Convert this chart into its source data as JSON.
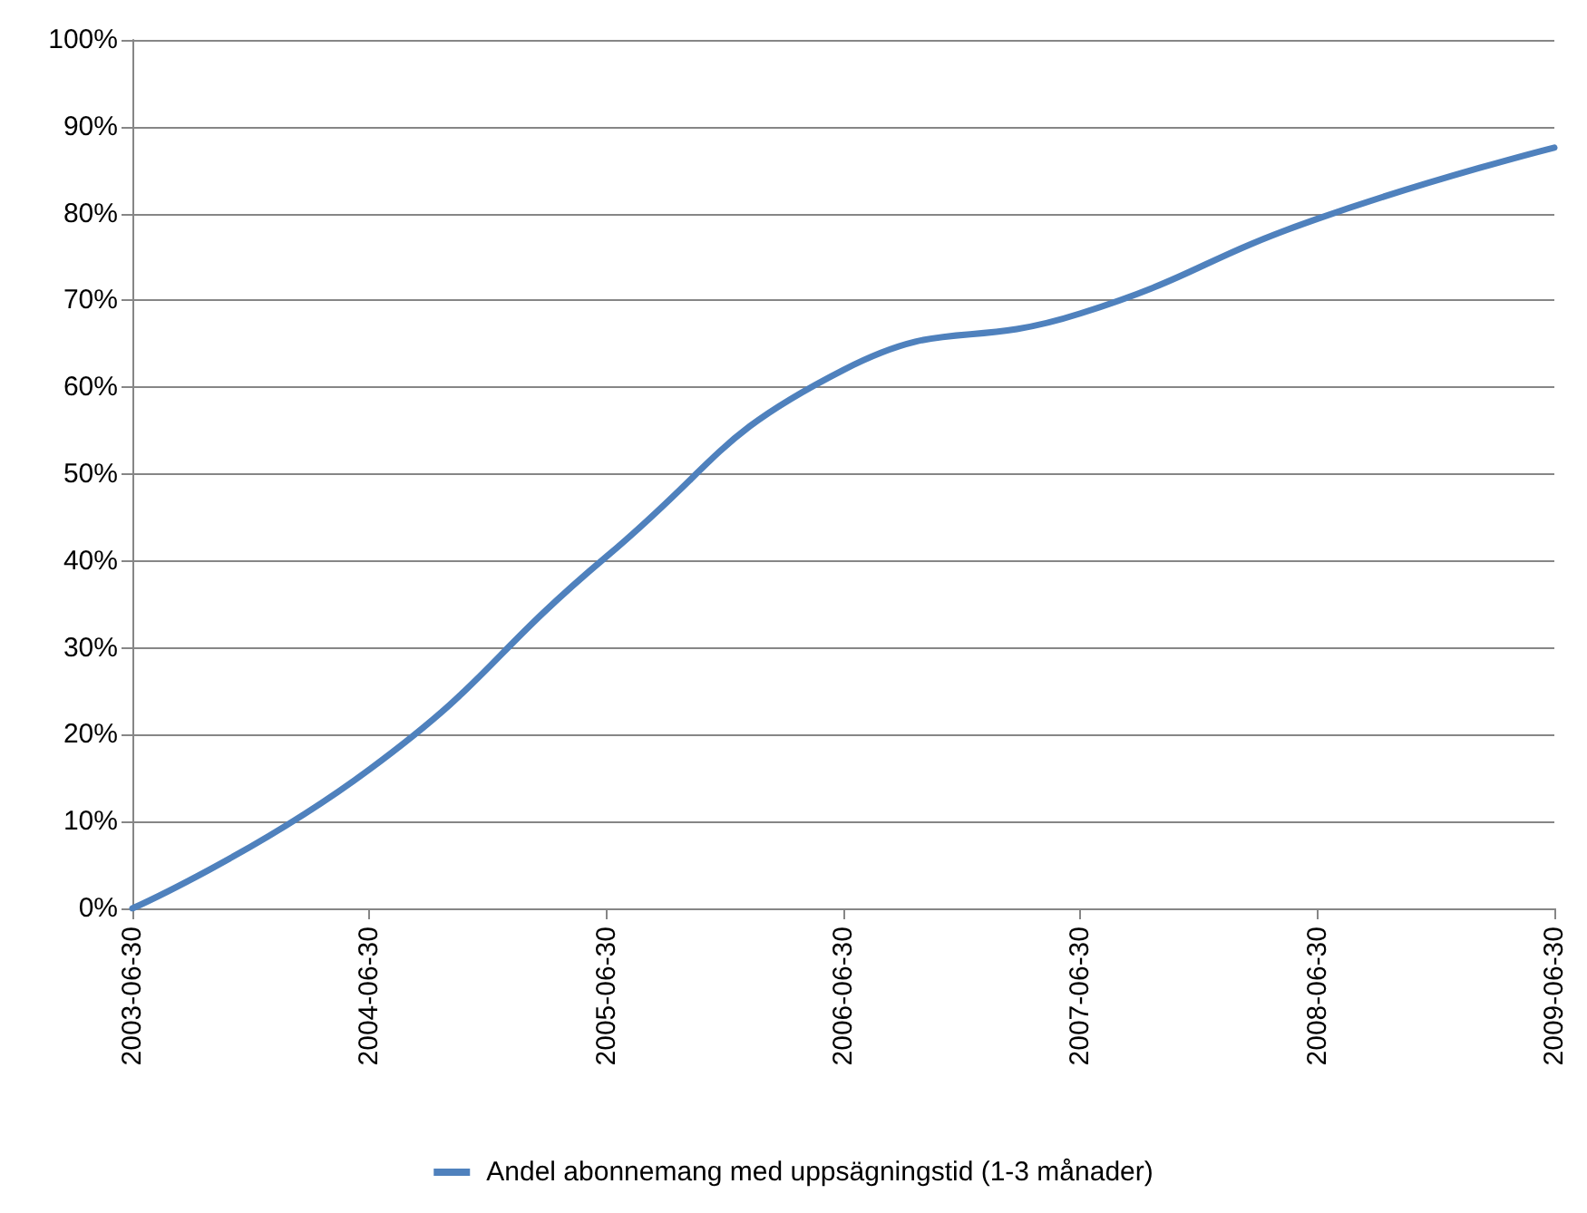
{
  "chart_data": {
    "type": "line",
    "categories": [
      "2003-06-30",
      "2004-06-30",
      "2005-06-30",
      "2006-06-30",
      "2007-06-30",
      "2008-06-30",
      "2009-06-30"
    ],
    "series": [
      {
        "name": "Andel abonnemang med uppsägningstid (1-3 månader)",
        "color": "#4f81bd",
        "values": [
          0,
          16,
          40.5,
          62,
          68.5,
          79.4,
          87.6
        ]
      }
    ],
    "ylim": [
      0,
      100
    ],
    "yticks": [
      {
        "value": 0,
        "label": "0%"
      },
      {
        "value": 10,
        "label": "10%"
      },
      {
        "value": 20,
        "label": "20%"
      },
      {
        "value": 30,
        "label": "30%"
      },
      {
        "value": 40,
        "label": "40%"
      },
      {
        "value": 50,
        "label": "50%"
      },
      {
        "value": 60,
        "label": "60%"
      },
      {
        "value": 70,
        "label": "70%"
      },
      {
        "value": 80,
        "label": "80%"
      },
      {
        "value": 90,
        "label": "90%"
      },
      {
        "value": 100,
        "label": "100%"
      }
    ],
    "grid": "y",
    "legend": "bottom",
    "marker": "none",
    "line_style": "solid"
  }
}
